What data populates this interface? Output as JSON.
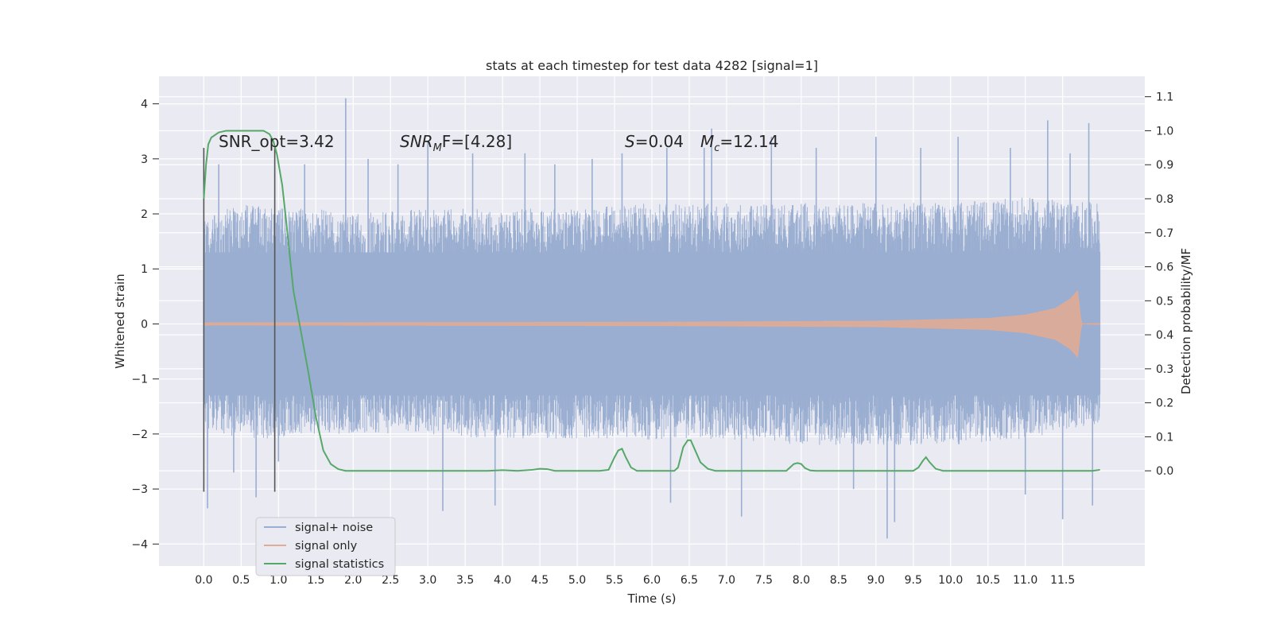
{
  "chart_data": {
    "type": "line",
    "title": "stats at each timestep for test data 4282 [signal=1]",
    "xlabel": "Time (s)",
    "ylabel": "Whitened strain",
    "y2label": "Detection probability/MF",
    "xlim": [
      -0.6,
      12.6
    ],
    "ylim": [
      -4.4,
      4.5
    ],
    "y2lim": [
      -0.28,
      1.16
    ],
    "x_ticks": [
      "0.0",
      "0.5",
      "1.0",
      "1.5",
      "2.0",
      "2.5",
      "3.0",
      "3.5",
      "4.0",
      "4.5",
      "5.0",
      "5.5",
      "6.0",
      "6.5",
      "7.0",
      "7.5",
      "8.0",
      "8.5",
      "9.0",
      "9.5",
      "10.0",
      "10.5",
      "11.0",
      "11.5"
    ],
    "y_ticks": [
      "4",
      "3",
      "2",
      "1",
      "0",
      "−1",
      "−2",
      "−3",
      "−4"
    ],
    "y2_ticks": [
      "1.1",
      "1.0",
      "0.9",
      "0.8",
      "0.7",
      "0.6",
      "0.5",
      "0.4",
      "0.3",
      "0.2",
      "0.1",
      "0.0"
    ],
    "grid": true,
    "legend_position": "lower-left",
    "annotations": {
      "snr_opt": "SNR_opt=3.42",
      "snr_mf_main": "SNR",
      "snr_mf_sub": "M",
      "snr_mf_tail": "F=[4.28]",
      "s_sym": "S",
      "s_val": "=0.04",
      "mc_sym": "M",
      "mc_sub": "c",
      "mc_val": "=12.14"
    },
    "markers": {
      "vertical_lines_x": [
        0.0,
        0.95
      ],
      "vertical_lines_range": [
        -3.05,
        3.2
      ]
    },
    "series": [
      {
        "name": "signal+ noise",
        "color": "#9aaed1",
        "x_range": [
          0.0,
          12.0
        ],
        "envelope_top": [
          [
            0.0,
            1.9
          ],
          [
            0.5,
            2.2
          ],
          [
            1.0,
            2.1
          ],
          [
            1.5,
            2.1
          ],
          [
            2.0,
            2.0
          ],
          [
            3.0,
            2.1
          ],
          [
            4.0,
            2.1
          ],
          [
            5.0,
            2.1
          ],
          [
            6.0,
            2.2
          ],
          [
            7.0,
            2.2
          ],
          [
            8.0,
            2.2
          ],
          [
            9.0,
            2.2
          ],
          [
            10.0,
            2.2
          ],
          [
            11.0,
            2.3
          ],
          [
            12.0,
            2.2
          ]
        ],
        "envelope_bottom": [
          [
            0.0,
            -1.9
          ],
          [
            0.5,
            -2.1
          ],
          [
            1.0,
            -2.1
          ],
          [
            1.5,
            -2.0
          ],
          [
            2.0,
            -2.0
          ],
          [
            3.0,
            -2.0
          ],
          [
            4.0,
            -2.1
          ],
          [
            5.0,
            -2.1
          ],
          [
            6.0,
            -2.1
          ],
          [
            7.0,
            -2.1
          ],
          [
            8.0,
            -2.2
          ],
          [
            9.0,
            -2.2
          ],
          [
            10.0,
            -2.2
          ],
          [
            11.0,
            -2.1
          ],
          [
            12.0,
            -1.8
          ]
        ],
        "peaks": [
          [
            0.05,
            -3.35
          ],
          [
            0.2,
            2.9
          ],
          [
            0.4,
            -2.7
          ],
          [
            0.7,
            -3.15
          ],
          [
            1.0,
            -2.5
          ],
          [
            1.35,
            2.9
          ],
          [
            1.9,
            4.1
          ],
          [
            2.2,
            3.0
          ],
          [
            2.6,
            2.9
          ],
          [
            3.0,
            3.3
          ],
          [
            3.2,
            -3.4
          ],
          [
            3.6,
            3.1
          ],
          [
            3.9,
            -3.3
          ],
          [
            4.3,
            3.1
          ],
          [
            4.7,
            2.9
          ],
          [
            5.2,
            3.0
          ],
          [
            5.6,
            3.1
          ],
          [
            6.2,
            3.2
          ],
          [
            6.25,
            -3.25
          ],
          [
            6.7,
            3.2
          ],
          [
            6.8,
            3.55
          ],
          [
            7.2,
            -3.5
          ],
          [
            7.6,
            3.4
          ],
          [
            8.2,
            3.2
          ],
          [
            8.7,
            -3.0
          ],
          [
            9.0,
            3.4
          ],
          [
            9.15,
            -3.9
          ],
          [
            9.25,
            -3.6
          ],
          [
            9.6,
            3.2
          ],
          [
            10.1,
            3.4
          ],
          [
            10.8,
            3.2
          ],
          [
            11.0,
            -3.1
          ],
          [
            11.3,
            3.7
          ],
          [
            11.5,
            -3.55
          ],
          [
            11.6,
            3.1
          ],
          [
            11.85,
            3.65
          ],
          [
            11.9,
            -3.3
          ]
        ]
      },
      {
        "name": "signal only",
        "color": "#e0ab94",
        "x_range": [
          0.0,
          12.0
        ],
        "amplitude": [
          [
            0.0,
            0.02
          ],
          [
            6.0,
            0.03
          ],
          [
            9.0,
            0.05
          ],
          [
            10.5,
            0.1
          ],
          [
            11.0,
            0.16
          ],
          [
            11.4,
            0.28
          ],
          [
            11.6,
            0.45
          ],
          [
            11.7,
            0.6
          ],
          [
            11.75,
            0.0
          ],
          [
            12.0,
            0.01
          ]
        ]
      },
      {
        "name": "signal statistics",
        "color": "#55a868",
        "points": [
          [
            0.0,
            0.8
          ],
          [
            0.03,
            0.9
          ],
          [
            0.06,
            0.96
          ],
          [
            0.1,
            0.98
          ],
          [
            0.2,
            0.995
          ],
          [
            0.3,
            1.0
          ],
          [
            0.6,
            1.0
          ],
          [
            0.8,
            1.0
          ],
          [
            0.88,
            0.99
          ],
          [
            0.93,
            0.97
          ],
          [
            0.98,
            0.93
          ],
          [
            1.05,
            0.84
          ],
          [
            1.1,
            0.74
          ],
          [
            1.2,
            0.53
          ],
          [
            1.3,
            0.41
          ],
          [
            1.4,
            0.29
          ],
          [
            1.5,
            0.16
          ],
          [
            1.6,
            0.06
          ],
          [
            1.7,
            0.02
          ],
          [
            1.8,
            0.005
          ],
          [
            1.9,
            0.0
          ],
          [
            3.8,
            0.0
          ],
          [
            4.0,
            0.002
          ],
          [
            4.2,
            0.0
          ],
          [
            4.4,
            0.003
          ],
          [
            4.5,
            0.006
          ],
          [
            4.6,
            0.005
          ],
          [
            4.7,
            0.0
          ],
          [
            5.3,
            0.0
          ],
          [
            5.42,
            0.003
          ],
          [
            5.5,
            0.04
          ],
          [
            5.55,
            0.06
          ],
          [
            5.6,
            0.065
          ],
          [
            5.65,
            0.04
          ],
          [
            5.72,
            0.01
          ],
          [
            5.8,
            0.0
          ],
          [
            6.3,
            0.0
          ],
          [
            6.35,
            0.01
          ],
          [
            6.42,
            0.07
          ],
          [
            6.48,
            0.09
          ],
          [
            6.52,
            0.09
          ],
          [
            6.58,
            0.06
          ],
          [
            6.65,
            0.025
          ],
          [
            6.75,
            0.006
          ],
          [
            6.85,
            0.0
          ],
          [
            7.8,
            0.0
          ],
          [
            7.9,
            0.02
          ],
          [
            7.95,
            0.023
          ],
          [
            8.0,
            0.02
          ],
          [
            8.05,
            0.008
          ],
          [
            8.12,
            0.001
          ],
          [
            8.2,
            0.0
          ],
          [
            9.5,
            0.0
          ],
          [
            9.57,
            0.01
          ],
          [
            9.63,
            0.03
          ],
          [
            9.67,
            0.04
          ],
          [
            9.72,
            0.025
          ],
          [
            9.8,
            0.006
          ],
          [
            9.9,
            0.0
          ],
          [
            11.9,
            0.0
          ],
          [
            12.0,
            0.003
          ]
        ]
      }
    ]
  }
}
